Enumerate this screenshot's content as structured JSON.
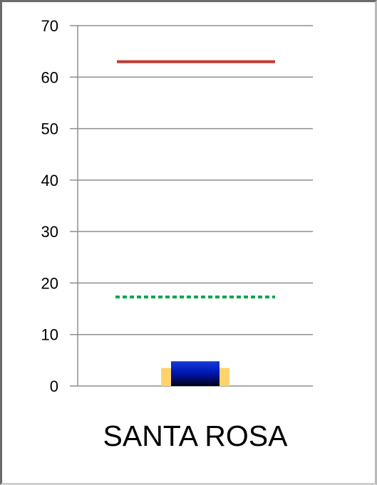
{
  "chart_data": {
    "type": "bar",
    "categories": [
      "SANTA ROSA"
    ],
    "ylim": [
      0,
      70
    ],
    "yticks": [
      0,
      10,
      20,
      30,
      40,
      50,
      60,
      70
    ],
    "grid": true,
    "series": [
      {
        "values": [
          4.8
        ],
        "style": "bar",
        "color": "#000f9e"
      },
      {
        "values": [
          3.5
        ],
        "style": "range-band",
        "color": "#ffd36b"
      },
      {
        "values": [
          63
        ],
        "style": "solid-reference-line",
        "color": "#c0392b"
      },
      {
        "values": [
          17.3
        ],
        "style": "dotted-reference-line",
        "color": "#00a651"
      }
    ],
    "title": "",
    "xlabel": "",
    "ylabel": ""
  }
}
